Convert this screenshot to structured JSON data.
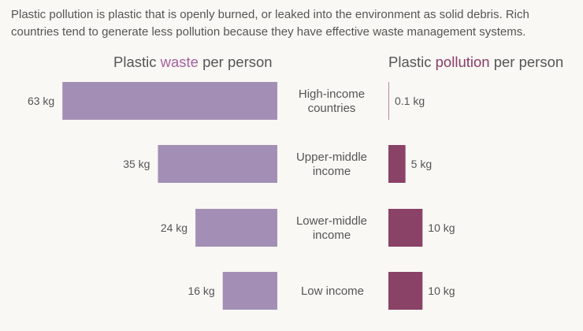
{
  "intro": "Plastic pollution is plastic that is openly burned, or leaked into the environment as solid debris. Rich countries tend to generate less pollution because they have effective waste management systems.",
  "headers": {
    "waste": {
      "pre": "Plastic ",
      "highlight": "waste",
      "post": " per person"
    },
    "pollution": {
      "pre": "Plastic ",
      "highlight": "pollution",
      "post": " per person"
    }
  },
  "colors": {
    "waste_bar": "#a38fb5",
    "pollution_bar": "#8b4267",
    "waste_text": "#a45fa0",
    "pollution_text": "#8b3a66"
  },
  "chart_data": {
    "type": "bar",
    "unit": "kg",
    "categories": [
      [
        "High-income",
        "countries"
      ],
      [
        "Upper-middle",
        "income"
      ],
      [
        "Lower-middle",
        "income"
      ],
      [
        "Low income"
      ]
    ],
    "series": [
      {
        "name": "Plastic waste per person",
        "values": [
          63,
          35,
          24,
          16
        ],
        "labels": [
          "63 kg",
          "35 kg",
          "24 kg",
          "16 kg"
        ]
      },
      {
        "name": "Plastic pollution per person",
        "values": [
          0.1,
          5,
          10,
          10
        ],
        "labels": [
          "0.1 kg",
          "5 kg",
          "10 kg",
          "10 kg"
        ]
      }
    ]
  }
}
